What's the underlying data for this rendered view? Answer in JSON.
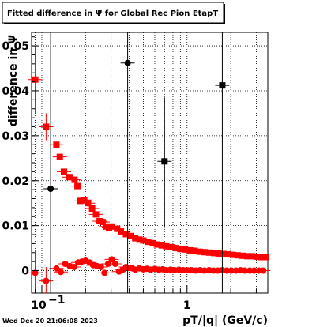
{
  "chart_data": {
    "type": "scatter",
    "title": "Fitted difference in  Ψ  for Global Rec Pion EtapT",
    "xlabel": "pT/|q| (GeV/c)",
    "ylabel": "difference in Ψ",
    "x_scale": "log",
    "xlim": [
      0.085,
      3.6
    ],
    "ylim": [
      -0.005,
      0.053
    ],
    "x_tick_labels": [
      {
        "value": 0.1,
        "base": "10",
        "exp": "−1"
      },
      {
        "value": 1,
        "base": "1",
        "exp": ""
      }
    ],
    "y_ticks": [
      0,
      0.01,
      0.02,
      0.03,
      0.04,
      0.05
    ],
    "y_tick_labels": [
      "0",
      "0.01",
      "0.02",
      "0.03",
      "0.04",
      "0.05"
    ],
    "grid": true,
    "date_stamp": "Wed Dec 20 21:06:08 2023",
    "colors": {
      "series_a": "#ff0000",
      "series_b": "#000000"
    },
    "series": [
      {
        "marker": "square",
        "color": "#ff0000",
        "points": [
          [
            0.09,
            0.0425
          ],
          [
            0.107,
            0.032
          ],
          [
            0.126,
            0.028
          ],
          [
            0.133,
            0.0253
          ],
          [
            0.142,
            0.022
          ],
          [
            0.155,
            0.0208
          ],
          [
            0.168,
            0.0202
          ],
          [
            0.176,
            0.0188
          ],
          [
            0.184,
            0.0155
          ],
          [
            0.196,
            0.0157
          ],
          [
            0.208,
            0.015
          ],
          [
            0.222,
            0.0138
          ],
          [
            0.236,
            0.0125
          ],
          [
            0.25,
            0.011
          ],
          [
            0.262,
            0.0108
          ],
          [
            0.277,
            0.0098
          ],
          [
            0.29,
            0.0095
          ],
          [
            0.305,
            0.0098
          ],
          [
            0.33,
            0.0093
          ],
          [
            0.35,
            0.0087
          ],
          [
            0.38,
            0.0081
          ],
          [
            0.41,
            0.0077
          ],
          [
            0.44,
            0.0072
          ],
          [
            0.47,
            0.0069
          ],
          [
            0.5,
            0.0067
          ],
          [
            0.54,
            0.0064
          ],
          [
            0.58,
            0.0061
          ],
          [
            0.62,
            0.0058
          ],
          [
            0.67,
            0.0056
          ],
          [
            0.72,
            0.0054
          ],
          [
            0.78,
            0.0052
          ],
          [
            0.84,
            0.005
          ],
          [
            0.9,
            0.0048
          ],
          [
            0.97,
            0.0047
          ],
          [
            1.05,
            0.0045
          ],
          [
            1.13,
            0.0044
          ],
          [
            1.22,
            0.0042
          ],
          [
            1.32,
            0.0041
          ],
          [
            1.42,
            0.004
          ],
          [
            1.53,
            0.0039
          ],
          [
            1.65,
            0.0038
          ],
          [
            1.78,
            0.0037
          ],
          [
            1.92,
            0.0036
          ],
          [
            2.07,
            0.0035
          ],
          [
            2.23,
            0.0034
          ],
          [
            2.41,
            0.0033
          ],
          [
            2.6,
            0.0032
          ],
          [
            2.8,
            0.0032
          ],
          [
            3.02,
            0.0031
          ],
          [
            3.25,
            0.003
          ],
          [
            3.5,
            0.003
          ]
        ]
      },
      {
        "marker": "circle",
        "color": "#ff0000",
        "points": [
          [
            0.09,
            -0.0005
          ],
          [
            0.107,
            -0.0023
          ],
          [
            0.126,
            0.0005
          ],
          [
            0.135,
            -0.0003
          ],
          [
            0.145,
            0.0015
          ],
          [
            0.156,
            0.001
          ],
          [
            0.167,
            0.0008
          ],
          [
            0.178,
            0.0018
          ],
          [
            0.189,
            0.002
          ],
          [
            0.2,
            0.0022
          ],
          [
            0.213,
            0.0018
          ],
          [
            0.226,
            0.0012
          ],
          [
            0.24,
            0.001
          ],
          [
            0.255,
            0.0008
          ],
          [
            0.27,
            -0.0005
          ],
          [
            0.286,
            0.0015
          ],
          [
            0.303,
            0.0025
          ],
          [
            0.32,
            0.0015
          ],
          [
            0.34,
            -0.0002
          ],
          [
            0.36,
            0.0002
          ],
          [
            0.38,
            0.0008
          ],
          [
            0.4,
            0.0006
          ],
          [
            0.42,
            0.0005
          ],
          [
            0.44,
            0.0002
          ],
          [
            0.47,
            0.0005
          ],
          [
            0.5,
            0.0003
          ],
          [
            0.53,
            0.0004
          ],
          [
            0.56,
            0.0002
          ],
          [
            0.6,
            0.0004
          ],
          [
            0.64,
            0.0002
          ],
          [
            0.68,
            0.0003
          ],
          [
            0.72,
            0.0001
          ],
          [
            0.77,
            0.0002
          ],
          [
            0.82,
            0.0001
          ],
          [
            0.88,
            0.0002
          ],
          [
            0.94,
            0.0001
          ],
          [
            1.0,
            0.0001
          ],
          [
            1.07,
            0.0001
          ],
          [
            1.15,
            0.0
          ],
          [
            1.23,
            0.0001
          ],
          [
            1.32,
            0.0
          ],
          [
            1.42,
            0.0001
          ],
          [
            1.52,
            0.0
          ],
          [
            1.63,
            0.0
          ],
          [
            1.75,
            0.0001
          ],
          [
            1.88,
            0.0
          ],
          [
            2.02,
            0.0
          ],
          [
            2.17,
            0.0
          ],
          [
            2.33,
            0.0001
          ],
          [
            2.5,
            0.0
          ],
          [
            2.7,
            0.0
          ],
          [
            2.9,
            0.0
          ],
          [
            3.12,
            0.0
          ],
          [
            3.35,
            0.0
          ]
        ]
      },
      {
        "marker": "circle",
        "color": "#000000",
        "points": [
          [
            0.115,
            0.0182
          ],
          [
            0.39,
            0.0462
          ]
        ]
      },
      {
        "marker": "square",
        "color": "#000000",
        "points": [
          [
            0.7,
            0.0243
          ],
          [
            1.75,
            0.0412
          ]
        ]
      }
    ]
  }
}
